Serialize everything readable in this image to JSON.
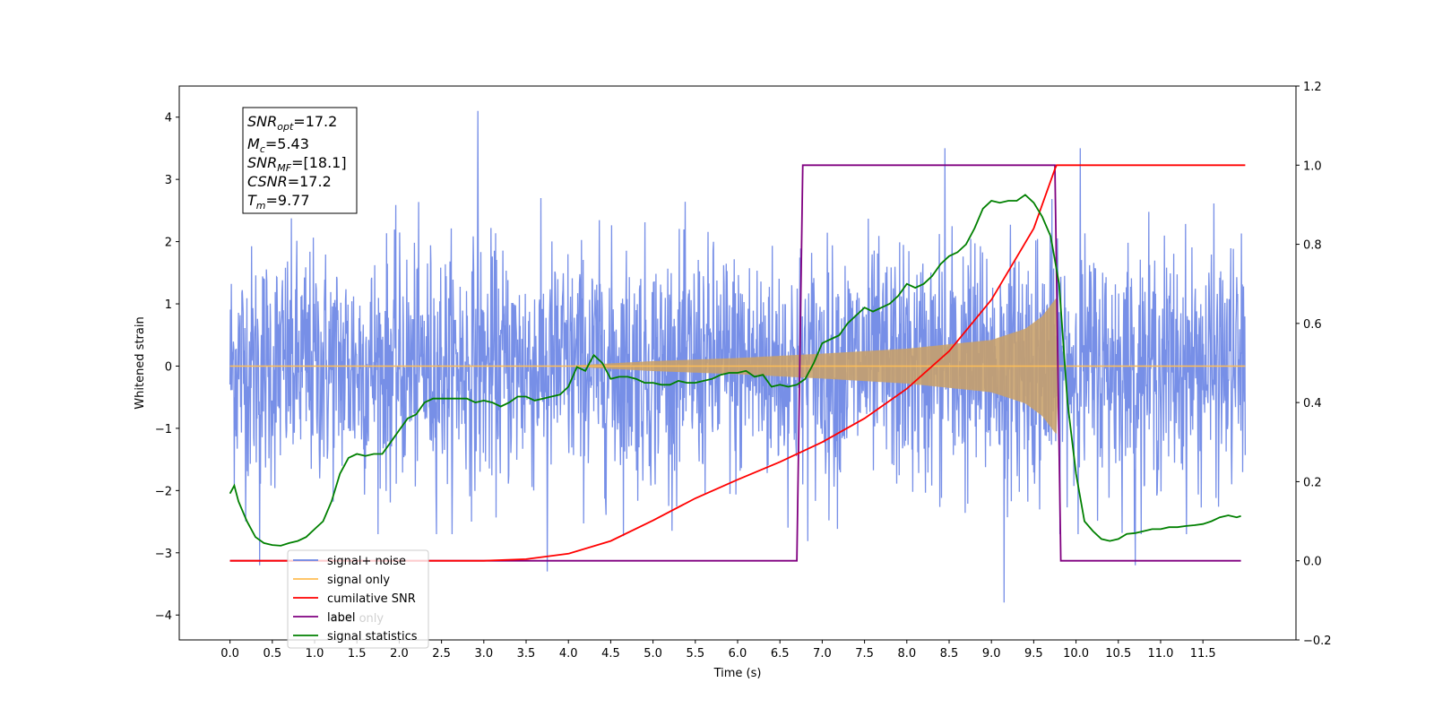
{
  "chart_data": {
    "type": "line",
    "xlabel": "Time (s)",
    "ylabel": "Whitened strain",
    "xlim": [
      -0.6,
      12.6
    ],
    "ylim": [
      -4.4,
      4.5
    ],
    "y2lim": [
      -0.2,
      1.2
    ],
    "xticks": [
      "0.0",
      "0.5",
      "1.0",
      "1.5",
      "2.0",
      "2.5",
      "3.0",
      "3.5",
      "4.0",
      "4.5",
      "5.0",
      "5.5",
      "6.0",
      "6.5",
      "7.0",
      "7.5",
      "8.0",
      "8.5",
      "9.0",
      "9.5",
      "10.0",
      "10.5",
      "11.0",
      "11.5"
    ],
    "yticks": [
      "−4",
      "−3",
      "−2",
      "−1",
      "0",
      "1",
      "2",
      "3",
      "4"
    ],
    "y2ticks": [
      "−0.2",
      "0.0",
      "0.2",
      "0.4",
      "0.6",
      "0.8",
      "1.0",
      "1.2"
    ],
    "annotation": {
      "snr_opt": {
        "base": "SNR",
        "sub": "opt",
        "value": "=17.2"
      },
      "mc": {
        "base": "M",
        "sub": "c",
        "value": "=5.43"
      },
      "snr_mf": {
        "base": "SNR",
        "sub": "MF",
        "value": "=[18.1]"
      },
      "csnr": {
        "base": "CSNR",
        "value": "=17.2"
      },
      "tm": {
        "base": "T",
        "sub": "m",
        "value": "=9.77"
      }
    },
    "legend": {
      "location": "lower-left",
      "entries": [
        {
          "label": "signal+ noise",
          "color": "#6b86e5"
        },
        {
          "label": "signal only",
          "color": "#ffbe55"
        },
        {
          "label": "cumilative SNR",
          "color": "#ff0000"
        },
        {
          "label": "label",
          "color": "#800080"
        },
        {
          "label": "signal statistics",
          "color": "#008000"
        }
      ],
      "hidden_entries": [
        {
          "label": "label only",
          "color": "#d0d0d0"
        }
      ]
    },
    "series": [
      {
        "name": "signal+ noise",
        "axis": "left",
        "color": "#6b86e5",
        "description_of_envelope": "noise band, peaks",
        "x_range": [
          0.0,
          12.0
        ],
        "typical_peak_range": [
          -2.6,
          2.6
        ],
        "notable_peaks": [
          [
            2.93,
            4.1
          ],
          [
            9.15,
            -3.8
          ],
          [
            3.75,
            -3.3
          ],
          [
            0.35,
            -3.2
          ],
          [
            10.05,
            3.5
          ],
          [
            8.45,
            3.5
          ],
          [
            10.7,
            -3.2
          ]
        ]
      },
      {
        "name": "signal only",
        "axis": "left",
        "color": "#ffbe55",
        "x_range": [
          0.0,
          12.0
        ],
        "chirp_start": 3.9,
        "merger_time": 9.77,
        "envelope": [
          [
            3.9,
            0.0
          ],
          [
            5.0,
            0.08
          ],
          [
            6.0,
            0.13
          ],
          [
            7.0,
            0.2
          ],
          [
            8.0,
            0.28
          ],
          [
            9.0,
            0.42
          ],
          [
            9.4,
            0.6
          ],
          [
            9.6,
            0.8
          ],
          [
            9.74,
            1.05
          ],
          [
            9.77,
            1.1
          ],
          [
            9.8,
            0.0
          ]
        ]
      },
      {
        "name": "cumilative SNR",
        "axis": "right",
        "color": "#ff0000",
        "x": [
          0.0,
          3.0,
          3.5,
          4.0,
          4.5,
          5.0,
          5.5,
          6.0,
          6.5,
          7.0,
          7.5,
          8.0,
          8.5,
          9.0,
          9.5,
          9.75,
          9.77,
          12.0
        ],
        "y": [
          0.0,
          0.0,
          0.004,
          0.018,
          0.05,
          0.102,
          0.158,
          0.205,
          0.25,
          0.3,
          0.36,
          0.435,
          0.53,
          0.66,
          0.84,
          0.99,
          1.0,
          1.0
        ]
      },
      {
        "name": "label",
        "axis": "right",
        "color": "#800080",
        "x": [
          0.0,
          6.7,
          6.77,
          9.75,
          9.82,
          11.95
        ],
        "y": [
          0.0,
          0.0,
          1.0,
          1.0,
          0.0,
          0.0
        ]
      },
      {
        "name": "signal statistics",
        "axis": "right",
        "color": "#008000",
        "x": [
          0.0,
          0.05,
          0.1,
          0.2,
          0.3,
          0.4,
          0.5,
          0.6,
          0.7,
          0.8,
          0.9,
          1.0,
          1.1,
          1.2,
          1.3,
          1.4,
          1.5,
          1.6,
          1.7,
          1.8,
          1.9,
          2.0,
          2.1,
          2.2,
          2.3,
          2.4,
          2.5,
          2.6,
          2.7,
          2.8,
          2.9,
          3.0,
          3.1,
          3.2,
          3.3,
          3.4,
          3.5,
          3.6,
          3.7,
          3.8,
          3.9,
          4.0,
          4.1,
          4.2,
          4.3,
          4.4,
          4.5,
          4.6,
          4.7,
          4.8,
          4.9,
          5.0,
          5.1,
          5.2,
          5.3,
          5.4,
          5.5,
          5.6,
          5.7,
          5.8,
          5.9,
          6.0,
          6.1,
          6.2,
          6.3,
          6.4,
          6.5,
          6.6,
          6.7,
          6.8,
          6.9,
          7.0,
          7.1,
          7.2,
          7.3,
          7.4,
          7.5,
          7.6,
          7.7,
          7.8,
          7.9,
          8.0,
          8.1,
          8.2,
          8.3,
          8.4,
          8.5,
          8.6,
          8.7,
          8.8,
          8.9,
          9.0,
          9.1,
          9.2,
          9.3,
          9.4,
          9.5,
          9.6,
          9.7,
          9.8,
          9.9,
          10.0,
          10.1,
          10.2,
          10.3,
          10.4,
          10.5,
          10.6,
          10.7,
          10.8,
          10.9,
          11.0,
          11.1,
          11.2,
          11.3,
          11.4,
          11.5,
          11.6,
          11.7,
          11.8,
          11.9,
          11.95
        ],
        "y": [
          0.17,
          0.19,
          0.15,
          0.1,
          0.06,
          0.045,
          0.04,
          0.038,
          0.045,
          0.05,
          0.06,
          0.08,
          0.1,
          0.15,
          0.22,
          0.26,
          0.27,
          0.265,
          0.27,
          0.27,
          0.3,
          0.33,
          0.36,
          0.37,
          0.4,
          0.41,
          0.41,
          0.41,
          0.41,
          0.41,
          0.4,
          0.405,
          0.4,
          0.39,
          0.4,
          0.415,
          0.415,
          0.405,
          0.41,
          0.415,
          0.42,
          0.44,
          0.49,
          0.48,
          0.52,
          0.5,
          0.46,
          0.465,
          0.465,
          0.46,
          0.45,
          0.45,
          0.445,
          0.445,
          0.455,
          0.45,
          0.45,
          0.455,
          0.46,
          0.47,
          0.475,
          0.475,
          0.48,
          0.465,
          0.47,
          0.44,
          0.445,
          0.44,
          0.445,
          0.46,
          0.5,
          0.55,
          0.56,
          0.57,
          0.6,
          0.62,
          0.64,
          0.63,
          0.64,
          0.65,
          0.67,
          0.7,
          0.69,
          0.7,
          0.72,
          0.75,
          0.77,
          0.78,
          0.8,
          0.84,
          0.89,
          0.91,
          0.905,
          0.91,
          0.91,
          0.925,
          0.905,
          0.87,
          0.82,
          0.7,
          0.4,
          0.22,
          0.1,
          0.075,
          0.055,
          0.05,
          0.055,
          0.068,
          0.07,
          0.075,
          0.08,
          0.08,
          0.085,
          0.085,
          0.088,
          0.09,
          0.093,
          0.1,
          0.11,
          0.115,
          0.11,
          0.113
        ]
      }
    ]
  }
}
